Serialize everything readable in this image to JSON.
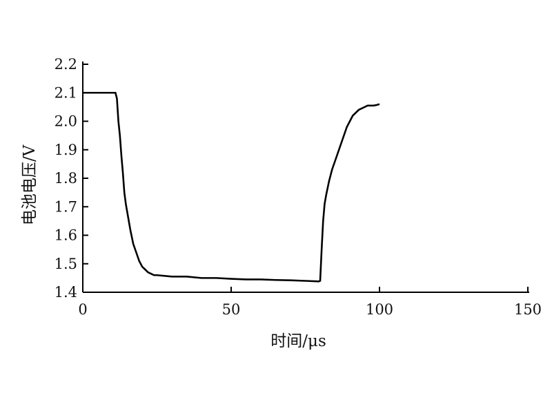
{
  "chart_data": {
    "type": "line",
    "title": "",
    "xlabel": "时间/μs",
    "ylabel": "电池电压/V",
    "xlim": [
      0,
      150
    ],
    "ylim": [
      1.4,
      2.2
    ],
    "xticks": [
      "0",
      "50",
      "100",
      "150"
    ],
    "yticks": [
      "1.4",
      "1.5",
      "1.6",
      "1.7",
      "1.8",
      "1.9",
      "2.0",
      "2.1",
      "2.2"
    ],
    "grid": false,
    "legend": "none",
    "line_color": "#000000",
    "series": [
      {
        "x": [
          0,
          11,
          11.5,
          12,
          12.5,
          13,
          13.5,
          14,
          14.5,
          15,
          15.5,
          16,
          17,
          18,
          19,
          20,
          21,
          22,
          23,
          24,
          25,
          30,
          35,
          40,
          45,
          50,
          55,
          60,
          65,
          70,
          75,
          79.5,
          80,
          80.5,
          81,
          81.5,
          82,
          83,
          84,
          85,
          86,
          87,
          88,
          89,
          90,
          91,
          92,
          93,
          94,
          95,
          96,
          97,
          98,
          99,
          100
        ],
        "y": [
          2.1,
          2.1,
          2.08,
          2.0,
          1.95,
          1.88,
          1.82,
          1.75,
          1.71,
          1.68,
          1.65,
          1.62,
          1.57,
          1.54,
          1.51,
          1.49,
          1.48,
          1.47,
          1.465,
          1.46,
          1.46,
          1.455,
          1.455,
          1.45,
          1.45,
          1.447,
          1.445,
          1.445,
          1.443,
          1.442,
          1.44,
          1.438,
          1.44,
          1.55,
          1.65,
          1.71,
          1.74,
          1.79,
          1.83,
          1.86,
          1.89,
          1.92,
          1.95,
          1.98,
          2.0,
          2.02,
          2.03,
          2.04,
          2.045,
          2.05,
          2.055,
          2.055,
          2.055,
          2.057,
          2.06
        ]
      }
    ]
  }
}
